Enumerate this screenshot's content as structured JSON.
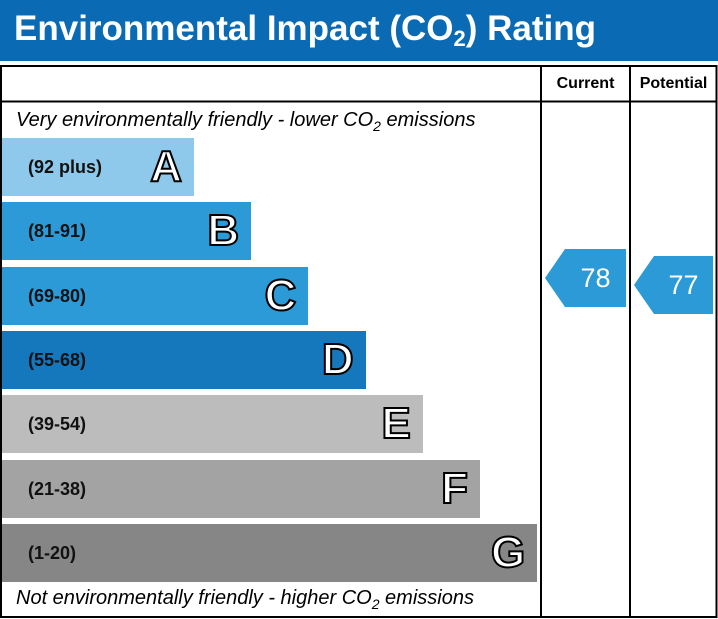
{
  "header": {
    "title_pre": "Environmental Impact (CO",
    "title_sub": "2",
    "title_post": ") Rating"
  },
  "columns": {
    "current": "Current",
    "potential": "Potential"
  },
  "captions": {
    "top_pre": "Very environmentally friendly - lower CO",
    "top_sub": "2",
    "top_post": " emissions",
    "bottom_pre": "Not environmentally friendly - higher CO",
    "bottom_sub": "2",
    "bottom_post": " emissions"
  },
  "chart_data": {
    "type": "table",
    "bands": [
      {
        "letter": "A",
        "range": "(92 plus)",
        "min": 92,
        "max": 100,
        "color": "#8ec8eb"
      },
      {
        "letter": "B",
        "range": "(81-91)",
        "min": 81,
        "max": 91,
        "color": "#2b9ad6"
      },
      {
        "letter": "C",
        "range": "(69-80)",
        "min": 69,
        "max": 80,
        "color": "#2b9ad6"
      },
      {
        "letter": "D",
        "range": "(55-68)",
        "min": 55,
        "max": 68,
        "color": "#1577bc"
      },
      {
        "letter": "E",
        "range": "(39-54)",
        "min": 39,
        "max": 54,
        "color": "#bcbcbc"
      },
      {
        "letter": "F",
        "range": "(21-38)",
        "min": 21,
        "max": 38,
        "color": "#a3a3a3"
      },
      {
        "letter": "G",
        "range": "(1-20)",
        "min": 1,
        "max": 20,
        "color": "#868686"
      }
    ],
    "current": {
      "value": 78,
      "band": "C",
      "color": "#2b9ad6"
    },
    "potential": {
      "value": 77,
      "band": "C",
      "color": "#2b9ad6"
    }
  }
}
